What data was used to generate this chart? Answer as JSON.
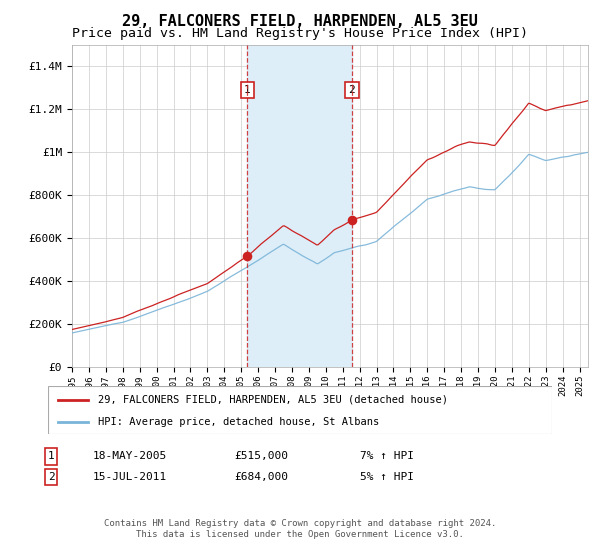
{
  "title": "29, FALCONERS FIELD, HARPENDEN, AL5 3EU",
  "subtitle": "Price paid vs. HM Land Registry's House Price Index (HPI)",
  "legend_line1": "29, FALCONERS FIELD, HARPENDEN, AL5 3EU (detached house)",
  "legend_line2": "HPI: Average price, detached house, St Albans",
  "sale1_date_str": "18-MAY-2005",
  "sale1_price": 515000,
  "sale1_hpi_pct": "7% ↑ HPI",
  "sale1_year": 2005.37,
  "sale2_date_str": "15-JUL-2011",
  "sale2_price": 684000,
  "sale2_hpi_pct": "5% ↑ HPI",
  "sale2_year": 2011.54,
  "footer": "Contains HM Land Registry data © Crown copyright and database right 2024.\nThis data is licensed under the Open Government Licence v3.0.",
  "hpi_color": "#7ab4d8",
  "price_color": "#cc2222",
  "sale_dot_color": "#cc2222",
  "vline_color": "#cc2222",
  "shade_color": "#ddeef8",
  "background_color": "#ffffff",
  "grid_color": "#cccccc",
  "ylim_max": 1500000,
  "xmin": 1995,
  "xmax": 2025.5
}
